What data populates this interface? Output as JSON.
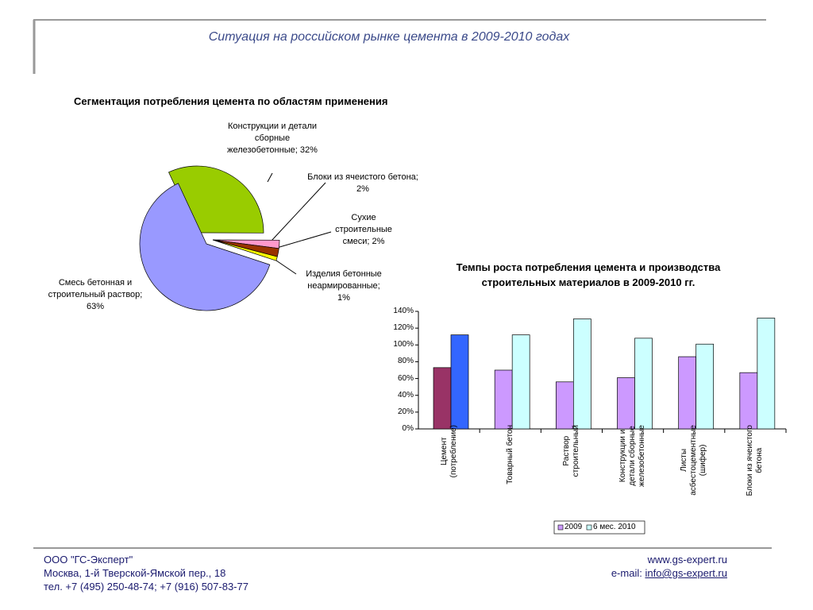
{
  "header": {
    "title": "Ситуация на российском рынке цемента в 2009-2010 годах"
  },
  "chart_data": [
    {
      "type": "pie",
      "title": "Сегментация потребления цемента по областям применения",
      "values": [
        32,
        2,
        2,
        1,
        63
      ],
      "value_labels": [
        "Конструкции и детали сборные железобетонные; 32%",
        "Блоки из ячеистого бетона; 2%",
        "Сухие строительные смеси; 2%",
        "Изделия бетонные неармированные; 1%",
        "Смесь бетонная и строительный раствор; 63%"
      ],
      "colors": [
        "#99cc00",
        "#ff99cc",
        "#993300",
        "#ffff00",
        "#9999ff"
      ]
    },
    {
      "type": "bar",
      "title": "Темпы роста потребления цемента и производства строительных материалов в 2009-2010 гг.",
      "categories": [
        "Цемент\n(потребление)",
        "Товарный бетон",
        "Раствор\nстроительный",
        "Конструкции и\nдетали сборные\nжелезобетонные",
        "Листы\nасбестоцементные\n(шифер)",
        "Блоки из ячеистого\nбетона"
      ],
      "series": [
        {
          "name": "2009",
          "color": "#cc99ff",
          "colors": [
            "#993366",
            "#cc99ff",
            "#cc99ff",
            "#cc99ff",
            "#cc99ff",
            "#cc99ff"
          ],
          "values": [
            73,
            70,
            56,
            61,
            86,
            67
          ]
        },
        {
          "name": "6 мес. 2010",
          "color": "#ccffff",
          "colors": [
            "#3366ff",
            "#ccffff",
            "#ccffff",
            "#ccffff",
            "#ccffff",
            "#ccffff"
          ],
          "values": [
            112,
            112,
            131,
            108,
            101,
            132
          ]
        }
      ],
      "ylim": [
        0,
        140
      ],
      "yticks": [
        {
          "value": 0,
          "label": "0%"
        },
        {
          "value": 20,
          "label": "20%"
        },
        {
          "value": 40,
          "label": "40%"
        },
        {
          "value": 60,
          "label": "60%"
        },
        {
          "value": 80,
          "label": "80%"
        },
        {
          "value": 100,
          "label": "100%"
        },
        {
          "value": 120,
          "label": "120%"
        },
        {
          "value": 140,
          "label": "140%"
        }
      ],
      "legend": "bottom"
    }
  ],
  "footer": {
    "company": "ООО \"ГС-Эксперт\"",
    "address": "Москва, 1-й Тверской-Ямской пер., 18",
    "phone": "тел. +7 (495) 250-48-74; +7 (916) 507-83-77",
    "site": "www.gs-expert.ru",
    "email_label": "e-mail:",
    "email": "info@gs-expert.ru"
  }
}
